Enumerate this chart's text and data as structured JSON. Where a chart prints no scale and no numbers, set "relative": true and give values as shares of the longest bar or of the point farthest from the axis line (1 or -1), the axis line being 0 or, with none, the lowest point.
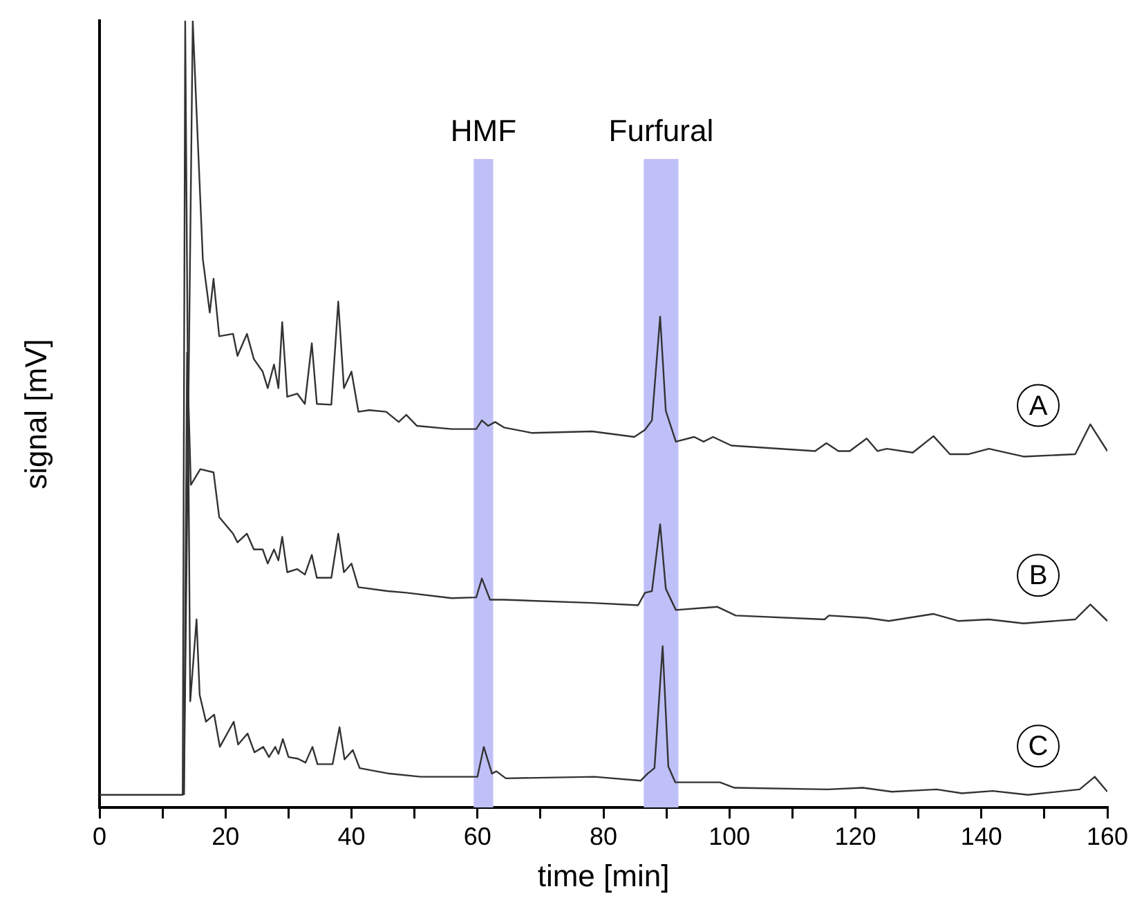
{
  "chart_data": {
    "type": "line",
    "xlabel": "time [min]",
    "ylabel": "signal [mV]",
    "relative": true,
    "xlim": [
      0,
      160
    ],
    "xticks": [
      0,
      {
        "value": 10,
        "label": null
      },
      20,
      {
        "value": 30,
        "label": null
      },
      40,
      {
        "value": 50,
        "label": null
      },
      60,
      {
        "value": 70,
        "label": null
      },
      80,
      {
        "value": 90,
        "label": null
      },
      100,
      {
        "value": 110,
        "label": null
      },
      120,
      {
        "value": 130,
        "label": null
      },
      140,
      {
        "value": 150,
        "label": null
      },
      160
    ],
    "grid": false,
    "legend": false,
    "marker": "none",
    "line_style": "solid",
    "bands": [
      {
        "axis": "x",
        "from": 59.4,
        "to": 62.5,
        "label": "HMF",
        "color": "#c0c0f8"
      },
      {
        "axis": "x",
        "from": 86.4,
        "to": 91.9,
        "label": "Furfural",
        "color": "#c0c0f8"
      }
    ],
    "series": [
      {
        "name": "A",
        "color": "#333333",
        "x": [
          13.4,
          14.8,
          15.3,
          16.4,
          17.5,
          18.1,
          19.0,
          21.2,
          21.9,
          23.4,
          24.5,
          25.9,
          26.7,
          27.7,
          28.4,
          29.0,
          29.8,
          31.4,
          32.6,
          33.7,
          34.5,
          36.8,
          37.9,
          38.8,
          40.0,
          41.1,
          42.8,
          45.5,
          47.5,
          48.7,
          50.4,
          55.9,
          59.8,
          60.7,
          61.7,
          62.8,
          64.2,
          68.7,
          78.2,
          84.9,
          86.6,
          87.7,
          89.0,
          89.9,
          91.5,
          94.4,
          95.9,
          97.4,
          100.3,
          113.6,
          115.4,
          117.3,
          119.1,
          121.8,
          123.5,
          125.0,
          129.1,
          132.4,
          135.0,
          137.9,
          141.2,
          146.7,
          154.9,
          157.3,
          160.0
        ],
        "values": [
          0.016,
          1,
          0.904,
          0.697,
          0.629,
          0.672,
          0.599,
          0.602,
          0.574,
          0.602,
          0.57,
          0.554,
          0.533,
          0.563,
          0.533,
          0.617,
          0.522,
          0.526,
          0.513,
          0.59,
          0.513,
          0.512,
          0.643,
          0.533,
          0.554,
          0.503,
          0.505,
          0.503,
          0.49,
          0.499,
          0.485,
          0.481,
          0.481,
          0.492,
          0.485,
          0.49,
          0.483,
          0.476,
          0.478,
          0.471,
          0.48,
          0.492,
          0.624,
          0.504,
          0.465,
          0.471,
          0.465,
          0.471,
          0.46,
          0.453,
          0.463,
          0.453,
          0.453,
          0.469,
          0.453,
          0.456,
          0.451,
          0.472,
          0.449,
          0.449,
          0.456,
          0.446,
          0.449,
          0.487,
          0.453
        ]
      },
      {
        "name": "B",
        "color": "#333333",
        "x": [
          13.4,
          13.9,
          14.5,
          16.0,
          18.1,
          19.0,
          21.2,
          21.9,
          23.4,
          24.5,
          25.9,
          26.7,
          27.7,
          28.4,
          29.0,
          29.8,
          31.4,
          32.6,
          33.7,
          34.5,
          36.8,
          37.9,
          38.8,
          40.0,
          41.1,
          45.7,
          48.7,
          55.9,
          59.8,
          60.7,
          62.0,
          64.2,
          78.2,
          85.5,
          86.6,
          87.7,
          89.0,
          89.9,
          91.5,
          98.1,
          101.0,
          115.1,
          115.8,
          121.8,
          125.3,
          132.4,
          136.4,
          141.2,
          146.7,
          154.9,
          157.3,
          160.0
        ],
        "values": [
          0.016,
          0.578,
          0.41,
          0.43,
          0.426,
          0.369,
          0.348,
          0.337,
          0.348,
          0.328,
          0.328,
          0.31,
          0.328,
          0.314,
          0.344,
          0.299,
          0.303,
          0.296,
          0.321,
          0.292,
          0.292,
          0.348,
          0.299,
          0.31,
          0.28,
          0.275,
          0.273,
          0.266,
          0.267,
          0.291,
          0.264,
          0.264,
          0.26,
          0.257,
          0.273,
          0.275,
          0.36,
          0.278,
          0.251,
          0.255,
          0.244,
          0.239,
          0.244,
          0.241,
          0.237,
          0.246,
          0.237,
          0.239,
          0.234,
          0.239,
          0.258,
          0.237
        ]
      },
      {
        "name": "C",
        "color": "#333333",
        "x": [
          0,
          13.2,
          13.6,
          14.4,
          15.4,
          15.9,
          16.9,
          18.2,
          19.1,
          21.3,
          22.0,
          23.5,
          24.6,
          26.0,
          26.9,
          27.9,
          28.4,
          29.1,
          30.0,
          31.5,
          32.7,
          33.8,
          34.6,
          37.0,
          38.1,
          38.9,
          40.2,
          41.3,
          46.0,
          51.0,
          56.1,
          60.0,
          61.0,
          62.3,
          63.0,
          64.5,
          78.6,
          85.9,
          87.0,
          88.1,
          89.4,
          90.3,
          91.4,
          98.5,
          100.8,
          115.6,
          121.2,
          125.8,
          132.9,
          136.9,
          141.8,
          147.4,
          155.6,
          158.0,
          160.0
        ],
        "values": [
          0.016,
          0.016,
          1,
          0.135,
          0.239,
          0.143,
          0.109,
          0.118,
          0.077,
          0.109,
          0.08,
          0.094,
          0.07,
          0.077,
          0.064,
          0.077,
          0.068,
          0.087,
          0.064,
          0.062,
          0.057,
          0.077,
          0.055,
          0.055,
          0.102,
          0.061,
          0.073,
          0.05,
          0.043,
          0.039,
          0.039,
          0.039,
          0.077,
          0.043,
          0.046,
          0.037,
          0.039,
          0.034,
          0.043,
          0.05,
          0.205,
          0.052,
          0.032,
          0.032,
          0.025,
          0.023,
          0.025,
          0.02,
          0.023,
          0.018,
          0.021,
          0.016,
          0.023,
          0.039,
          0.02
        ]
      }
    ]
  }
}
